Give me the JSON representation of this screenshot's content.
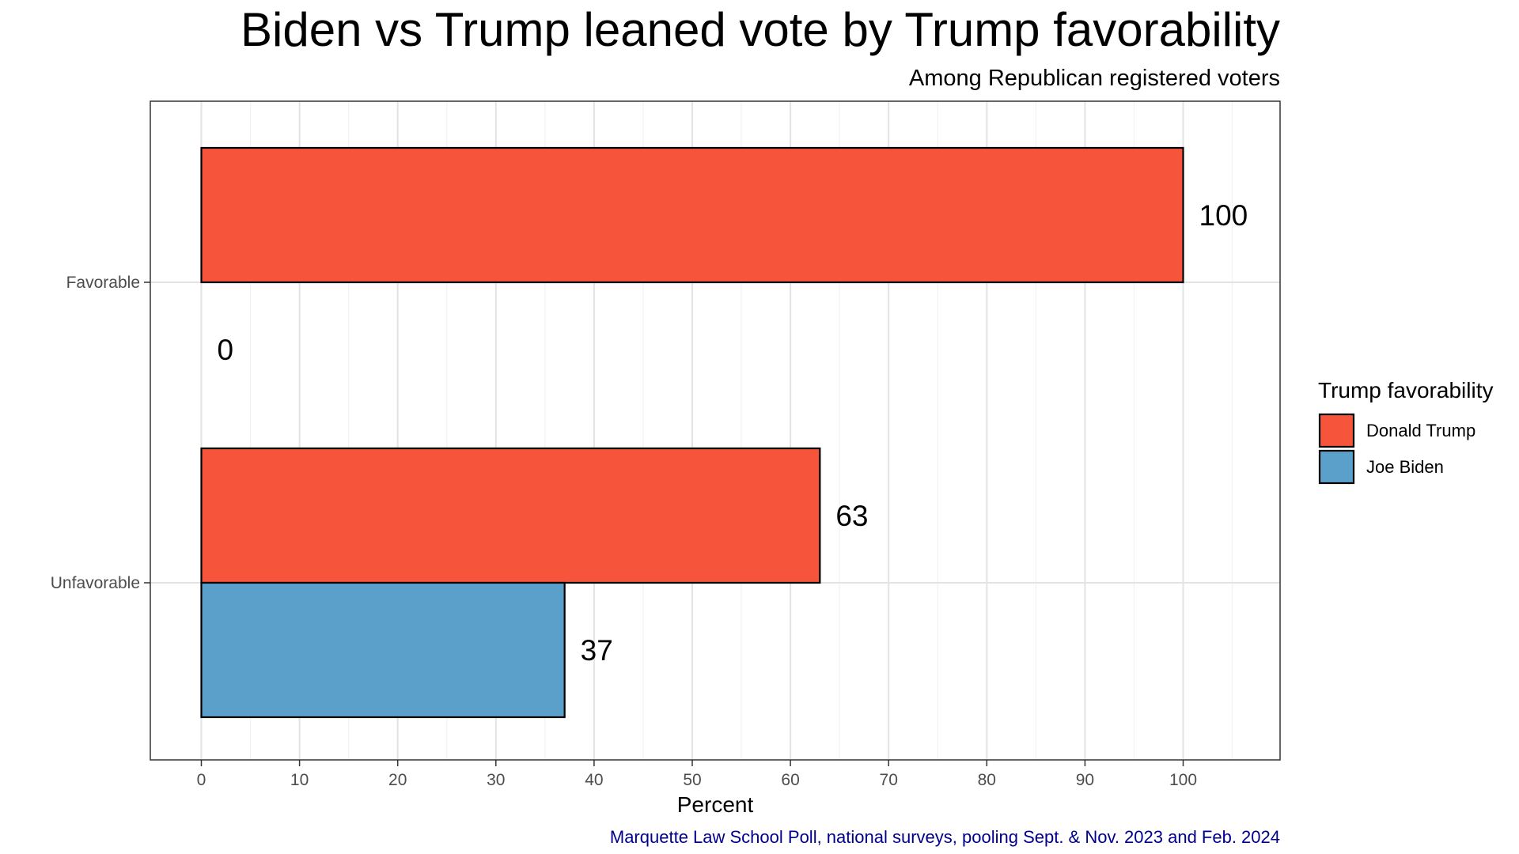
{
  "chart_data": {
    "type": "bar",
    "orientation": "horizontal",
    "title": "Biden vs Trump leaned vote by Trump favorability",
    "subtitle": "Among Republican registered voters",
    "xlabel": "Percent",
    "ylabel": "",
    "xlim": [
      0,
      105
    ],
    "x_ticks": [
      "0",
      "10",
      "20",
      "30",
      "40",
      "50",
      "60",
      "70",
      "80",
      "90",
      "100"
    ],
    "categories": [
      "Favorable",
      "Unfavorable"
    ],
    "series": [
      {
        "name": "Donald Trump",
        "color": "#f6553c",
        "values": [
          100,
          63
        ],
        "labels": [
          "100",
          "63"
        ]
      },
      {
        "name": "Joe Biden",
        "color": "#5ba0cb",
        "values": [
          0,
          37
        ],
        "labels": [
          "0",
          "37"
        ]
      }
    ],
    "legend": {
      "title": "Trump favorability",
      "position": "right"
    },
    "grid": true,
    "caption": "Marquette Law School Poll, national surveys, pooling Sept. & Nov. 2023 and Feb. 2024"
  }
}
